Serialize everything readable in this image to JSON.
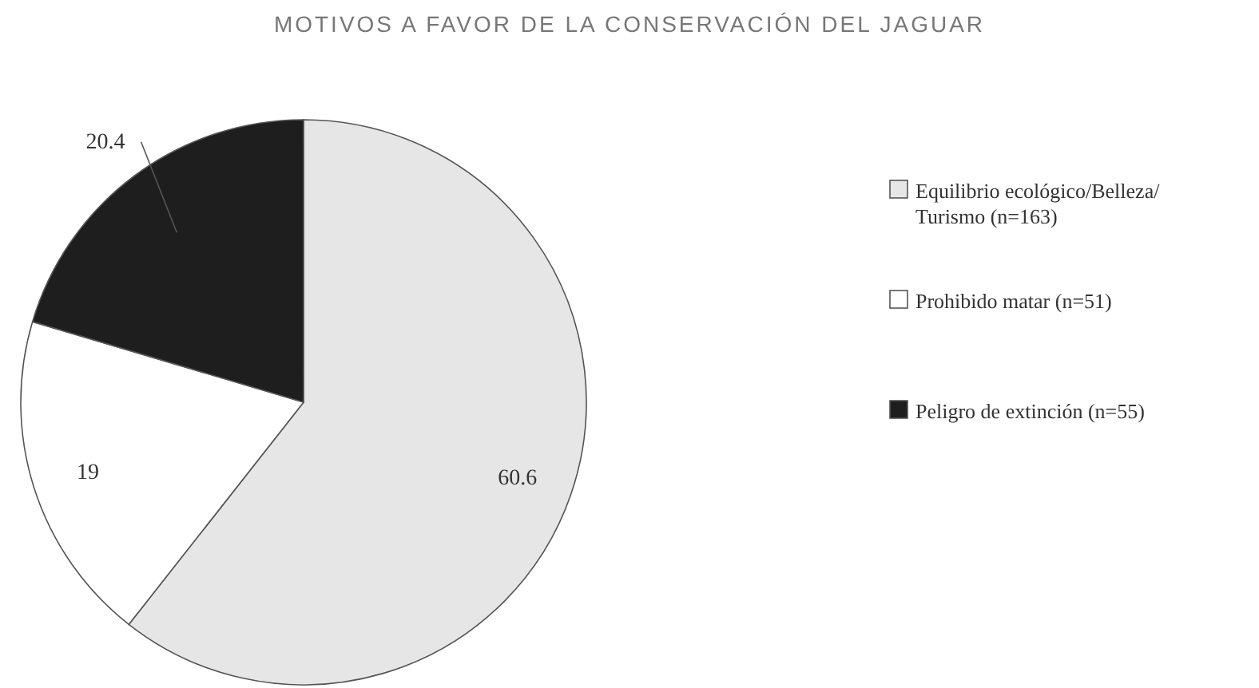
{
  "chart_data": {
    "type": "pie",
    "title": "MOTIVOS A FAVOR DE LA CONSERVACIÓN DEL JAGUAR",
    "categories": [
      "Equilibrio ecológico/Belleza/ Turismo (n=163)",
      "Prohibido matar (n=51)",
      "Peligro de extinción (n=55)"
    ],
    "values": [
      60.6,
      19,
      20.4
    ],
    "colors": [
      "#e6e6e6",
      "#ffffff",
      "#1e1e1e"
    ],
    "data_labels": true,
    "legend": "right"
  }
}
